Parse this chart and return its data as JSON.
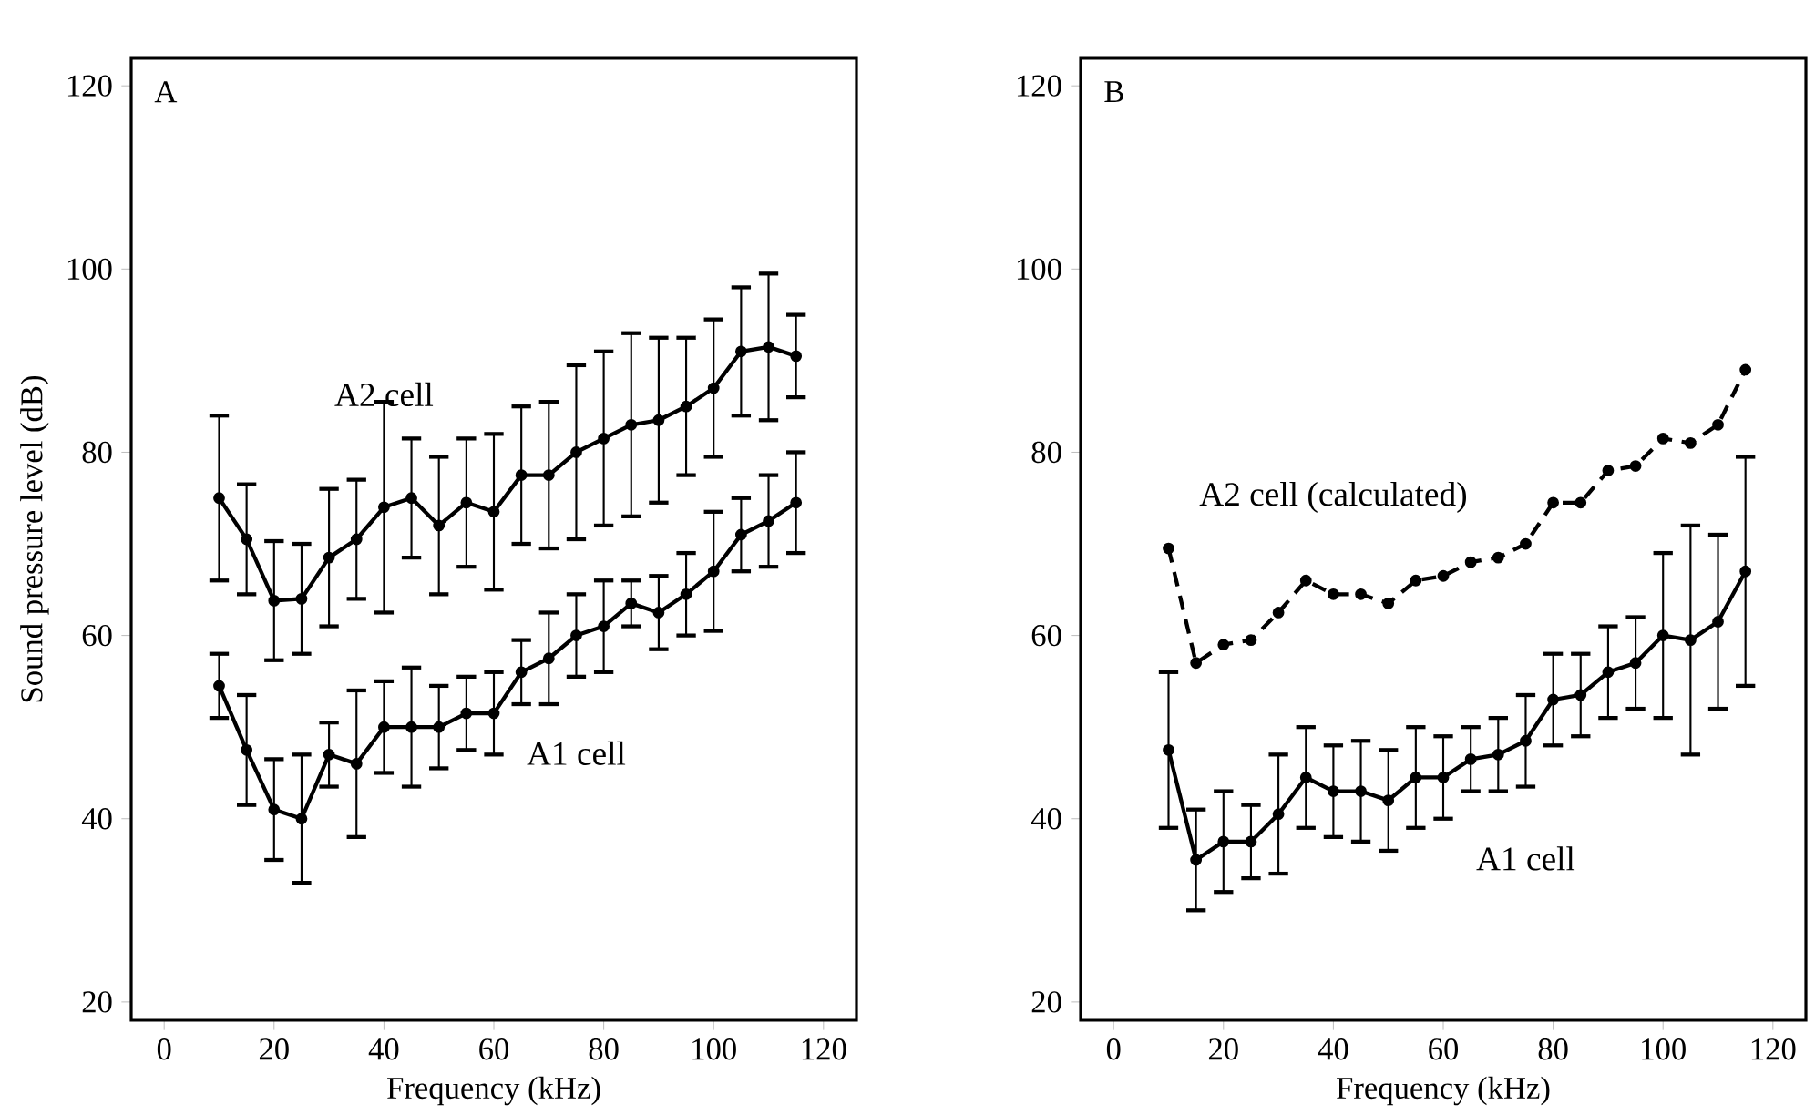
{
  "chart_data": [
    {
      "type": "line",
      "title": "A",
      "xlabel": "Frequency (kHz)",
      "ylabel": "Sound pressure level (dB)",
      "xlim": [
        -6,
        126
      ],
      "ylim": [
        18,
        123
      ],
      "xticks": [
        0,
        20,
        40,
        60,
        80,
        100,
        120
      ],
      "yticks": [
        20,
        40,
        60,
        80,
        100,
        120
      ],
      "x": [
        10,
        15,
        20,
        25,
        30,
        35,
        40,
        45,
        50,
        55,
        60,
        65,
        70,
        75,
        80,
        85,
        90,
        95,
        100,
        105,
        110,
        115
      ],
      "marker": "circle",
      "line_style": "solid",
      "grid": false,
      "legend": false,
      "series": [
        {
          "name": "A2 cell",
          "color": "#000000",
          "values": [
            75,
            70.5,
            63.8,
            64,
            68.5,
            70.5,
            74,
            75,
            72,
            74.5,
            73.5,
            77.5,
            77.5,
            80,
            81.5,
            83,
            83.5,
            85,
            87,
            91,
            91.5,
            90.5
          ],
          "errors": [
            9,
            6,
            6.5,
            6,
            7.5,
            6.5,
            11.5,
            6.5,
            7.5,
            7,
            8.5,
            7.5,
            8,
            9.5,
            9.5,
            10,
            9,
            7.5,
            7.5,
            7,
            8,
            4.5
          ]
        },
        {
          "name": "A1 cell",
          "color": "#000000",
          "values": [
            54.5,
            47.5,
            41,
            40,
            47,
            46,
            50,
            50,
            50,
            51.5,
            51.5,
            56,
            57.5,
            60,
            61,
            63.5,
            62.5,
            64.5,
            67,
            71,
            72.5,
            74.5
          ],
          "errors": [
            3.5,
            6,
            5.5,
            7,
            3.5,
            8,
            5,
            6.5,
            4.5,
            4,
            4.5,
            3.5,
            5,
            4.5,
            5,
            2.5,
            4,
            4.5,
            6.5,
            4,
            5,
            5.5
          ]
        }
      ]
    },
    {
      "type": "line",
      "title": "B",
      "xlabel": "Frequency (kHz)",
      "xlim": [
        -6,
        126
      ],
      "ylim": [
        18,
        123
      ],
      "xticks": [
        0,
        20,
        40,
        60,
        80,
        100,
        120
      ],
      "yticks": [
        20,
        40,
        60,
        80,
        100,
        120
      ],
      "x": [
        10,
        15,
        20,
        25,
        30,
        35,
        40,
        45,
        50,
        55,
        60,
        65,
        70,
        75,
        80,
        85,
        90,
        95,
        100,
        105,
        110,
        115
      ],
      "marker": "circle",
      "grid": false,
      "legend": false,
      "series": [
        {
          "name": "A2 cell (calculated)",
          "color": "#000000",
          "line_style": "dashed",
          "values": [
            69.5,
            57,
            59,
            59.5,
            62.5,
            66,
            64.5,
            64.5,
            63.5,
            66,
            66.5,
            68,
            68.5,
            70,
            74.5,
            74.5,
            78,
            78.5,
            81.5,
            81,
            83,
            89
          ]
        },
        {
          "name": "A1 cell",
          "color": "#000000",
          "line_style": "solid",
          "values": [
            47.5,
            35.5,
            37.5,
            37.5,
            40.5,
            44.5,
            43,
            43,
            42,
            44.5,
            44.5,
            46.5,
            47,
            48.5,
            53,
            53.5,
            56,
            57,
            60,
            59.5,
            61.5,
            67
          ],
          "errors": [
            8.5,
            5.5,
            5.5,
            4,
            6.5,
            5.5,
            5,
            5.5,
            5.5,
            5.5,
            4.5,
            3.5,
            4,
            5,
            5,
            4.5,
            5,
            5,
            9,
            12.5,
            9.5,
            12.5
          ]
        }
      ]
    }
  ]
}
